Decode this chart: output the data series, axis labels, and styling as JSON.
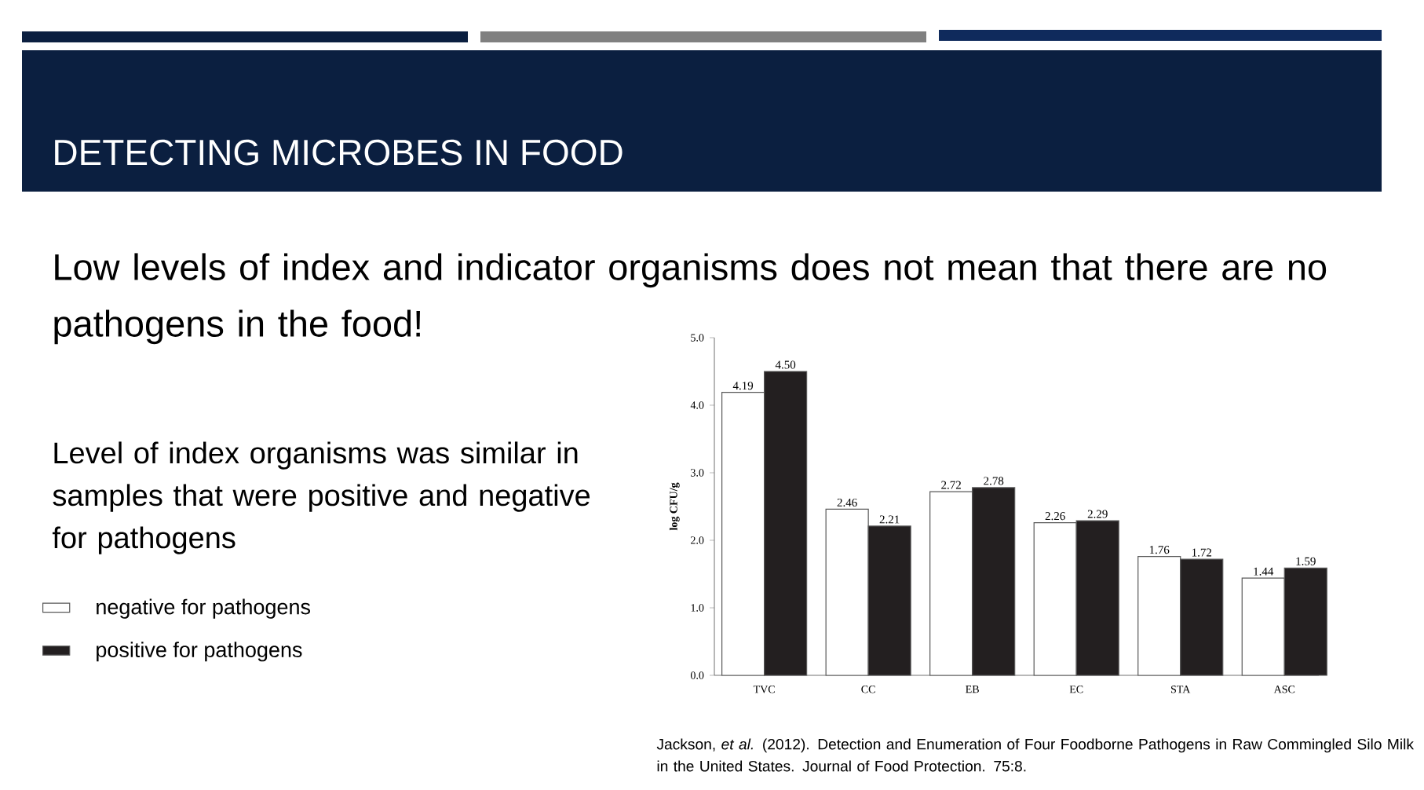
{
  "chart_data": {
    "type": "bar",
    "title": "DETECTING MICROBES IN FOOD",
    "subtitle": "Low levels of index and indicator organisms does not mean that there are no pathogens in the food!",
    "annotations": [
      "Level of index organisms was similar in samples that were positive and negative for pathogens",
      "Jackson, *et al.* (2012). Detection and Enumeration of Four Foodborne Pathogens in Raw Commingled Silo Milk in the United States. Journal of Food Protection. 75:8."
    ],
    "categories": [
      "TVC",
      "CC",
      "EB",
      "EC",
      "STA",
      "ASC"
    ],
    "ylabel": "log CFU/g",
    "ylim": [
      0,
      5
    ],
    "yticks": [
      {
        "value": 0,
        "label": "0.0"
      },
      {
        "value": 1,
        "label": "1.0"
      },
      {
        "value": 2,
        "label": "2.0"
      },
      {
        "value": 3,
        "label": "3.0"
      },
      {
        "value": 4,
        "label": "4.0"
      },
      {
        "value": 5,
        "label": "5.0"
      }
    ],
    "series": [
      {
        "name": "negative for pathogens",
        "color": "#ffffff",
        "values": [
          4.19,
          2.46,
          2.72,
          2.26,
          1.76,
          1.44
        ],
        "value_labels": [
          "4.19",
          "2.46",
          "2.72",
          "2.26",
          "1.76",
          "1.44"
        ]
      },
      {
        "name": "positive for pathogens",
        "color": "#231f20",
        "values": [
          4.5,
          2.21,
          2.78,
          2.29,
          1.72,
          1.59
        ],
        "value_labels": [
          "4.50",
          "2.21",
          "2.78",
          "2.29",
          "1.72",
          "1.59"
        ]
      }
    ],
    "legend": "left",
    "grid": false
  }
}
